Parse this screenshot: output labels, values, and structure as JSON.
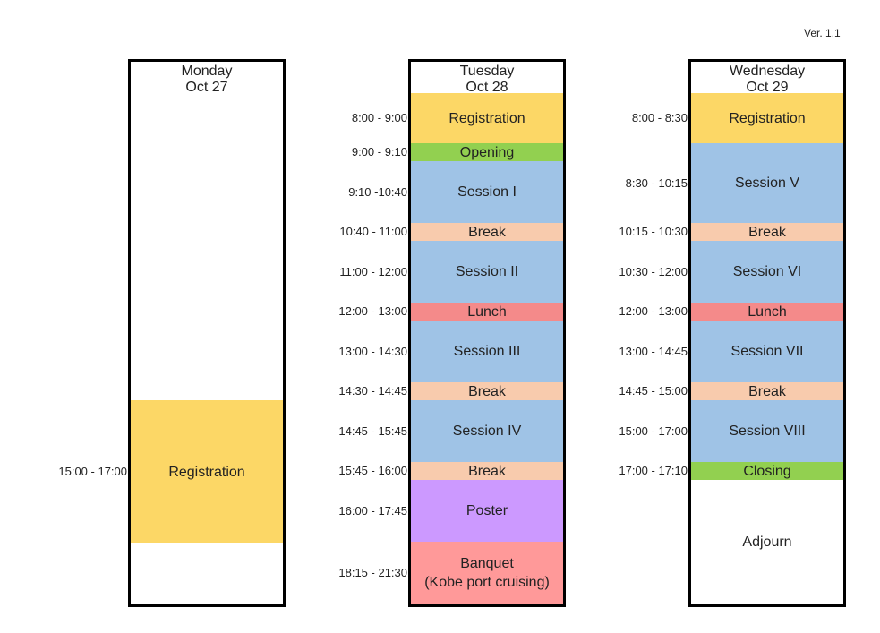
{
  "version": "Ver. 1.1",
  "colors": {
    "registration": "#fcd766",
    "opening": "#92d050",
    "session": "#9fc3e6",
    "break": "#f8cbad",
    "lunch": "#f48a8a",
    "poster": "#cc99ff",
    "banquet": "#ff9999",
    "closing": "#92d050",
    "adjourn": "#ffffff"
  },
  "days": [
    {
      "day": "Monday",
      "date": "Oct 27",
      "events": [
        {
          "time": "15:00 - 17:00",
          "label": "Registration",
          "type": "registration"
        }
      ]
    },
    {
      "day": "Tuesday",
      "date": "Oct 28",
      "events": [
        {
          "time": "8:00 - 9:00",
          "label": "Registration",
          "type": "registration"
        },
        {
          "time": "9:00 - 9:10",
          "label": "Opening",
          "type": "opening"
        },
        {
          "time": "9:10 -10:40",
          "label": "Session I",
          "type": "session"
        },
        {
          "time": "10:40 - 11:00",
          "label": "Break",
          "type": "break"
        },
        {
          "time": "11:00 - 12:00",
          "label": "Session II",
          "type": "session"
        },
        {
          "time": "12:00 - 13:00",
          "label": "Lunch",
          "type": "lunch"
        },
        {
          "time": "13:00 - 14:30",
          "label": "Session III",
          "type": "session"
        },
        {
          "time": "14:30 - 14:45",
          "label": "Break",
          "type": "break"
        },
        {
          "time": "14:45 - 15:45",
          "label": "Session IV",
          "type": "session"
        },
        {
          "time": "15:45 - 16:00",
          "label": "Break",
          "type": "break"
        },
        {
          "time": "16:00 - 17:45",
          "label": "Poster",
          "type": "poster"
        },
        {
          "time": "18:15 - 21:30",
          "label": "Banquet\n(Kobe port cruising)",
          "type": "banquet"
        }
      ]
    },
    {
      "day": "Wednesday",
      "date": "Oct 29",
      "events": [
        {
          "time": "8:00 - 8:30",
          "label": "Registration",
          "type": "registration"
        },
        {
          "time": "8:30 - 10:15",
          "label": "Session V",
          "type": "session"
        },
        {
          "time": "10:15 - 10:30",
          "label": "Break",
          "type": "break"
        },
        {
          "time": "10:30 - 12:00",
          "label": "Session VI",
          "type": "session"
        },
        {
          "time": "12:00 - 13:00",
          "label": "Lunch",
          "type": "lunch"
        },
        {
          "time": "13:00 - 14:45",
          "label": "Session VII",
          "type": "session"
        },
        {
          "time": "14:45 - 15:00",
          "label": "Break",
          "type": "break"
        },
        {
          "time": "15:00 - 17:00",
          "label": "Session VIII",
          "type": "session"
        },
        {
          "time": "17:00 - 17:10",
          "label": "Closing",
          "type": "closing"
        },
        {
          "time": "",
          "label": "Adjourn",
          "type": "adjourn"
        }
      ]
    }
  ]
}
